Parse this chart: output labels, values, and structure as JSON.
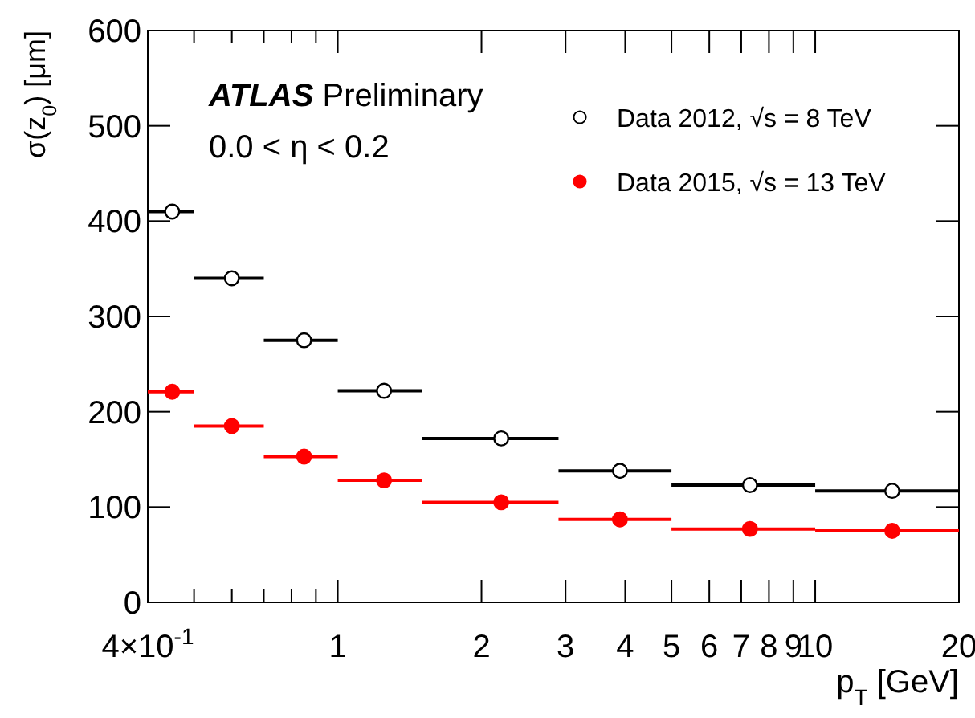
{
  "chart_data": {
    "type": "scatter",
    "xlabel": "p$_{T}$ [GeV]",
    "ylabel": "σ(z$_{0}$) [μm]",
    "annotations": [
      "ATLAS Preliminary",
      "0.0 < η < 0.2"
    ],
    "x": [
      0.45,
      0.6,
      0.85,
      1.25,
      2.2,
      3.9,
      7.3,
      14.5
    ],
    "series": [
      {
        "name": "Data 2012, √s = 8 TeV",
        "color": "#000000",
        "values": [
          410,
          340,
          275,
          222,
          172,
          138,
          123,
          117
        ],
        "xerrors": [
          [
            0.4,
            0.5
          ],
          [
            0.5,
            0.7
          ],
          [
            0.7,
            1
          ],
          [
            1,
            1.5
          ],
          [
            1.5,
            2.9
          ],
          [
            2.9,
            5
          ],
          [
            5,
            10
          ],
          [
            10,
            20
          ]
        ]
      },
      {
        "name": "Data 2015, √s = 13 TeV",
        "color": "#ff0000",
        "values": [
          221,
          185,
          153,
          128,
          105,
          87,
          77,
          75
        ],
        "xerrors": [
          [
            0.4,
            0.5
          ],
          [
            0.5,
            0.7
          ],
          [
            0.7,
            1
          ],
          [
            1,
            1.5
          ],
          [
            1.5,
            2.9
          ],
          [
            2.9,
            5
          ],
          [
            5,
            10
          ],
          [
            10,
            20
          ]
        ]
      }
    ],
    "log": "x",
    "xlim": [
      0.4,
      20
    ],
    "xticks": [
      {
        "value": 0.4,
        "label": "4×10$^{-1}$"
      },
      {
        "value": 0.5,
        "label": null
      },
      {
        "value": 0.6,
        "label": null
      },
      {
        "value": 0.7,
        "label": null
      },
      {
        "value": 0.8,
        "label": null
      },
      {
        "value": 0.9,
        "label": null
      },
      1,
      2,
      3,
      4,
      5,
      6,
      7,
      8,
      9,
      10,
      20
    ],
    "ylim": [
      0,
      600
    ],
    "yticks": [
      0,
      100,
      200,
      300,
      400,
      500,
      600
    ],
    "grid": false,
    "legend": "top right",
    "marker": "circle"
  }
}
